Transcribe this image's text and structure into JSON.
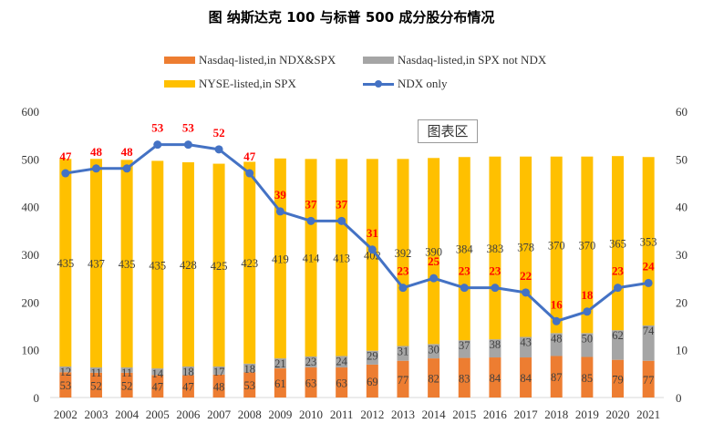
{
  "chart_data": {
    "type": "bar",
    "title": "图  纳斯达克 100 与标普 500 成分股分布情况",
    "watermark": "图表区",
    "categories": [
      "2002",
      "2003",
      "2004",
      "2005",
      "2006",
      "2007",
      "2008",
      "2009",
      "2010",
      "2011",
      "2012",
      "2013",
      "2014",
      "2015",
      "2016",
      "2017",
      "2018",
      "2019",
      "2020",
      "2021"
    ],
    "stacked": true,
    "series": [
      {
        "name": "Nasdaq-listed,in NDX&SPX",
        "type": "bar",
        "axis": "left",
        "color": "#ED7D31",
        "values": [
          53,
          52,
          52,
          47,
          47,
          48,
          53,
          61,
          63,
          63,
          69,
          77,
          82,
          83,
          84,
          84,
          87,
          85,
          79,
          77
        ]
      },
      {
        "name": "Nasdaq-listed,in SPX not NDX",
        "type": "bar",
        "axis": "left",
        "color": "#A5A5A5",
        "values": [
          12,
          11,
          11,
          14,
          18,
          17,
          18,
          21,
          23,
          24,
          29,
          31,
          30,
          37,
          38,
          43,
          48,
          50,
          62,
          74
        ]
      },
      {
        "name": "NYSE-listed,in SPX",
        "type": "bar",
        "axis": "left",
        "color": "#FFC000",
        "values": [
          435,
          437,
          435,
          435,
          428,
          425,
          423,
          419,
          414,
          413,
          402,
          392,
          390,
          384,
          383,
          378,
          370,
          370,
          365,
          353
        ]
      },
      {
        "name": "NDX only",
        "type": "line",
        "axis": "right",
        "color": "#4472C4",
        "values": [
          47,
          48,
          48,
          53,
          53,
          52,
          47,
          39,
          37,
          37,
          31,
          23,
          25,
          23,
          23,
          22,
          16,
          18,
          23,
          24
        ]
      }
    ],
    "y_left": {
      "min": 0,
      "max": 600,
      "ticks": [
        0,
        100,
        200,
        300,
        400,
        500,
        600
      ]
    },
    "y_right": {
      "min": 0,
      "max": 60,
      "ticks": [
        0,
        10,
        20,
        30,
        40,
        50,
        60
      ]
    },
    "grid": false,
    "legend_position": "top",
    "label_color_line": "#FF0000",
    "label_color_bar": "#404040"
  }
}
